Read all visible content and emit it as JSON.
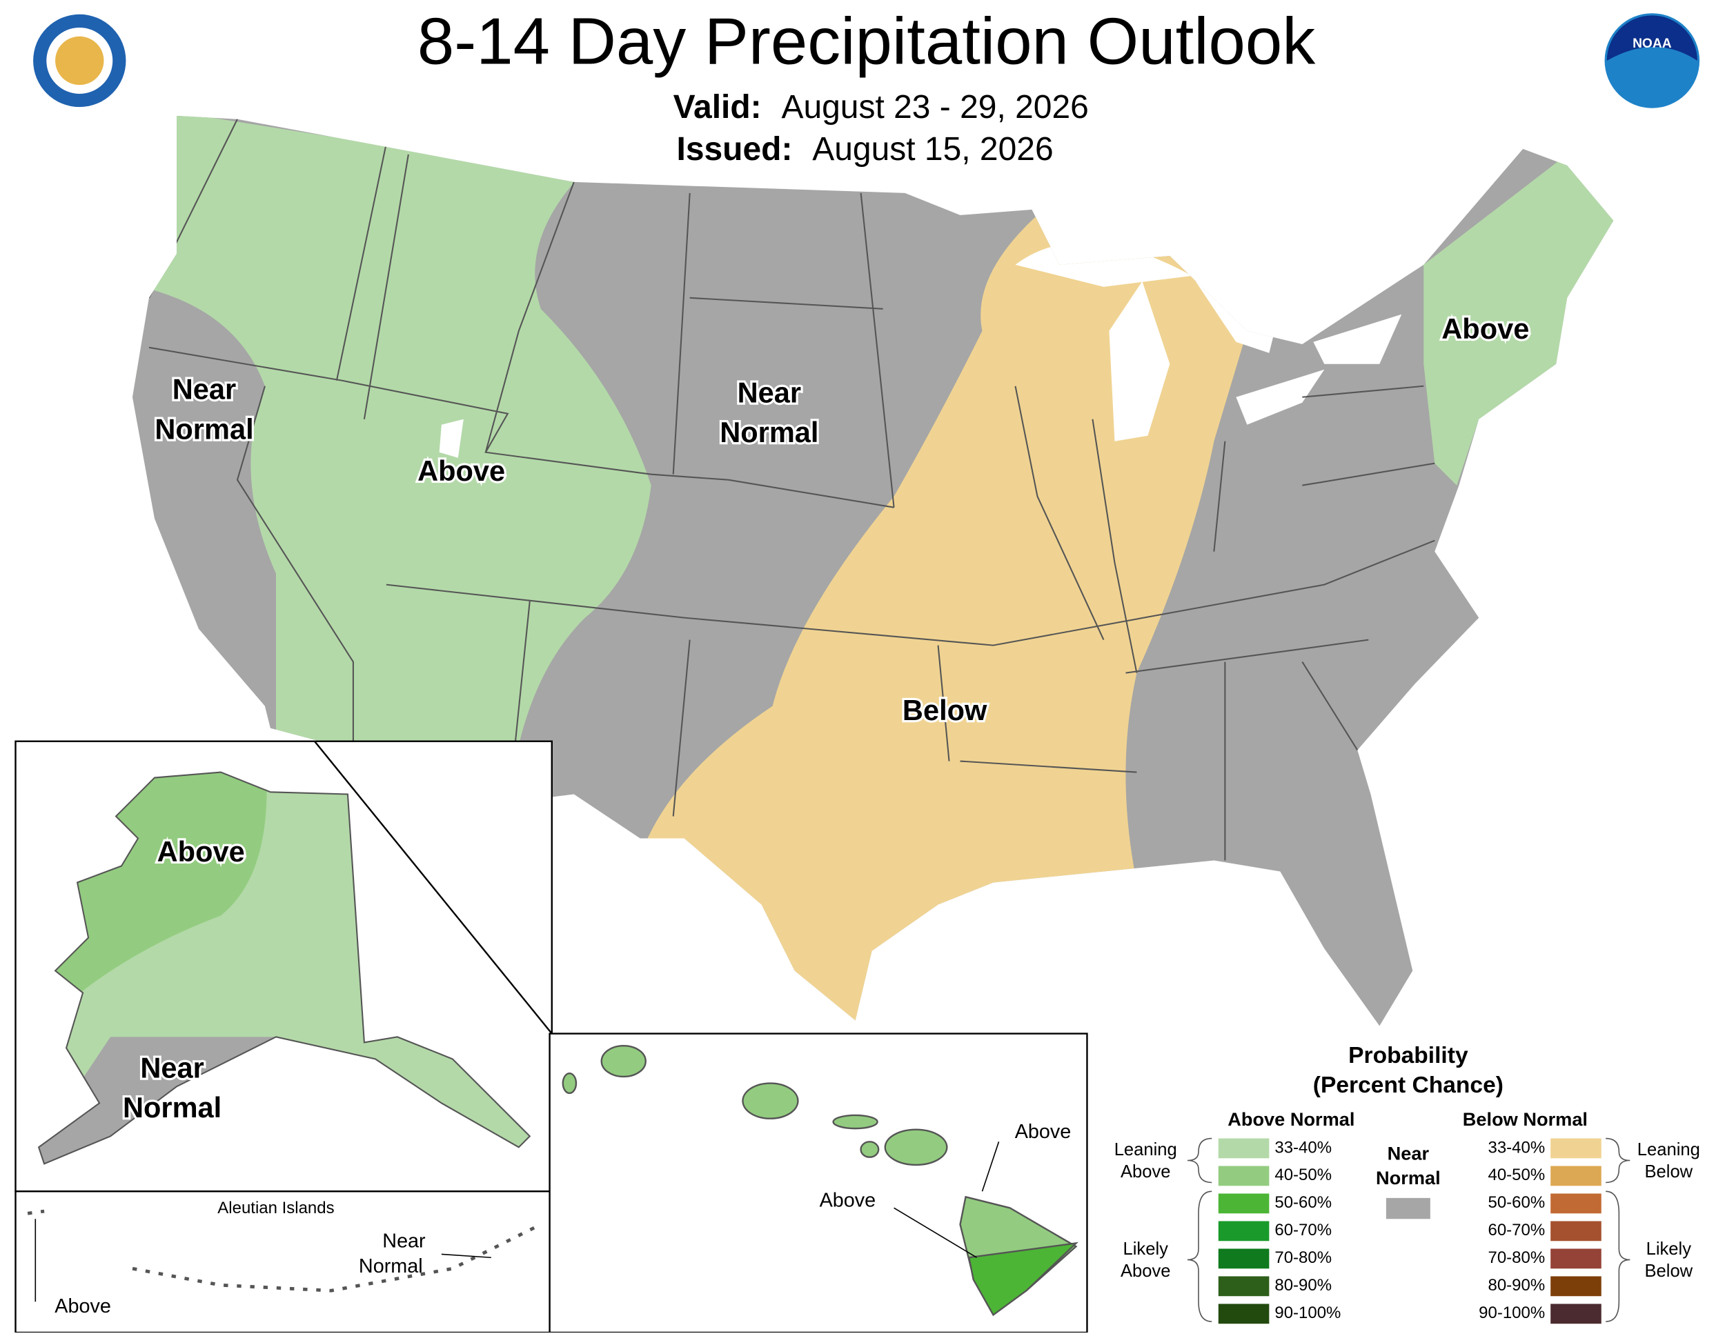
{
  "header": {
    "title": "8-14 Day Precipitation Outlook",
    "valid_label": "Valid:",
    "valid": "August 23 - 29, 2026",
    "issued_label": "Issued:",
    "issued": "August 15, 2026"
  },
  "map_labels": {
    "west_near": [
      "Near",
      "Normal"
    ],
    "west_above": "Above",
    "plains_near": [
      "Near",
      "Normal"
    ],
    "south_below": "Below",
    "northeast_above": "Above"
  },
  "alaska": {
    "above": "Above",
    "near": [
      "Near",
      "Normal"
    ],
    "aleutian_title": "Aleutian Islands",
    "aleutian_near": [
      "Near",
      "Normal"
    ],
    "aleutian_above": "Above"
  },
  "hawaii": {
    "above_1": "Above",
    "above_2": "Above"
  },
  "legend": {
    "title": [
      "Probability",
      "(Percent Chance)"
    ],
    "above_header": "Above Normal",
    "below_header": "Below Normal",
    "near": [
      "Near",
      "Normal"
    ],
    "leaning_above": [
      "Leaning",
      "Above"
    ],
    "likely_above": [
      "Likely",
      "Above"
    ],
    "leaning_below": [
      "Leaning",
      "Below"
    ],
    "likely_below": [
      "Likely",
      "Below"
    ],
    "above_bins": [
      {
        "label": "33-40%",
        "color": "#b3d9a8"
      },
      {
        "label": "40-50%",
        "color": "#93cc80"
      },
      {
        "label": "50-60%",
        "color": "#4cb535"
      },
      {
        "label": "60-70%",
        "color": "#1a9a2a"
      },
      {
        "label": "70-80%",
        "color": "#0f7a1e"
      },
      {
        "label": "80-90%",
        "color": "#2e5f1a"
      },
      {
        "label": "90-100%",
        "color": "#234a0e"
      }
    ],
    "below_bins": [
      {
        "label": "33-40%",
        "color": "#f0d392"
      },
      {
        "label": "40-50%",
        "color": "#dda853"
      },
      {
        "label": "50-60%",
        "color": "#c26a33"
      },
      {
        "label": "60-70%",
        "color": "#a5502e"
      },
      {
        "label": "70-80%",
        "color": "#954237"
      },
      {
        "label": "80-90%",
        "color": "#7d3f0a"
      },
      {
        "label": "90-100%",
        "color": "#4b2b2f"
      }
    ],
    "near_color": "#a6a6a6"
  }
}
